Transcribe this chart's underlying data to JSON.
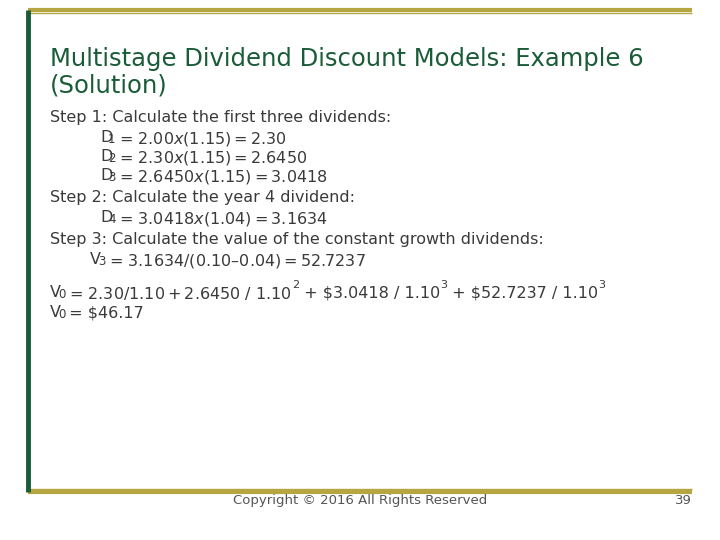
{
  "title_line1": "Multistage Dividend Discount Models: Example 6",
  "title_line2": "(Solution)",
  "title_color": "#1a5c38",
  "bg_color": "#ffffff",
  "border_color": "#b5a642",
  "content_color": "#3a3a3a",
  "title_fontsize": 17.5,
  "content_fontsize": 11.5,
  "sub_fontsize": 8.5,
  "sup_fontsize": 8.0,
  "step1": "Step 1: Calculate the first three dividends:",
  "d1_eq": " = $2.00 x (1.15) = $2.30",
  "d2_eq": " = $2.30 x (1.15) = $2.6450",
  "d3_eq": " = $2.6450 x (1.15) = $3.0418",
  "step2": "Step 2: Calculate the year 4 dividend:",
  "d4_eq": " = $3.0418 x (1.04) = $3.1634",
  "step3": "Step 3: Calculate the value of the constant growth dividends:",
  "v3_eq": " = $3.1634 / (0.10 – 0.04) = $52.7237",
  "v0_part1": " = $2.30 / 1.10 + $2.6450 / 1.10",
  "v0_part2": " + $3.0418 / 1.10",
  "v0_part3": " + $52.7237 / 1.10",
  "v0_eq2": " = $46.17",
  "footer_text": "Copyright © 2016 All Rights Reserved",
  "footer_page": "39",
  "footer_fontsize": 9.5,
  "font_family": "DejaVu Sans"
}
